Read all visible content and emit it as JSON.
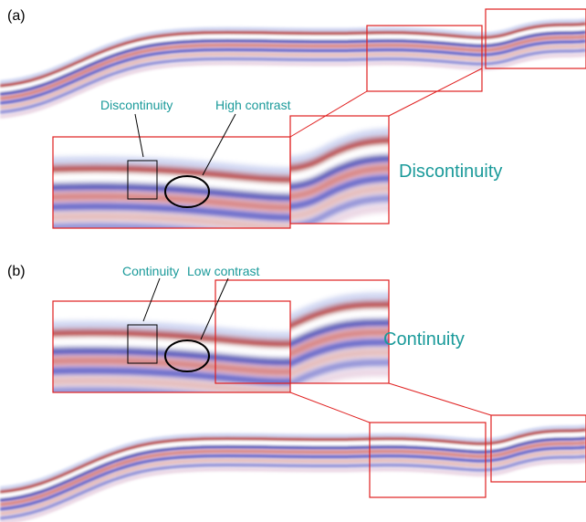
{
  "panel_a": {
    "label": "(a)",
    "callout_left": "Discontinuity",
    "callout_right": "High contrast",
    "caption": "Discontinuity"
  },
  "panel_b": {
    "label": "(b)",
    "callout_left": "Continuity",
    "callout_right": "Low contrast",
    "caption": "Continuity"
  }
}
